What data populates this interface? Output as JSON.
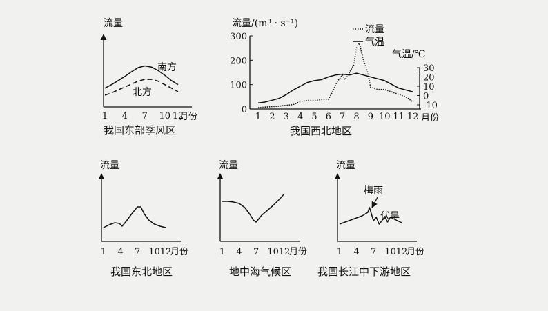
{
  "chart_data": [
    {
      "type": "line",
      "caption": "我国东部季风区",
      "ylabel": "流量",
      "xlabel": "月份",
      "ticks": [
        "1",
        "4",
        "7",
        "10",
        "12"
      ],
      "series": [
        {
          "name": "南方",
          "style": "solid",
          "x": [
            1,
            2,
            3,
            4,
            5,
            6,
            7,
            8,
            9,
            10,
            11,
            12
          ],
          "y": [
            0.32,
            0.38,
            0.45,
            0.52,
            0.6,
            0.67,
            0.7,
            0.68,
            0.62,
            0.54,
            0.45,
            0.38
          ]
        },
        {
          "name": "北方",
          "style": "dashed",
          "x": [
            1,
            2,
            3,
            4,
            5,
            6,
            7,
            8,
            9,
            10,
            11,
            12
          ],
          "y": [
            0.2,
            0.24,
            0.29,
            0.34,
            0.39,
            0.44,
            0.47,
            0.47,
            0.44,
            0.38,
            0.32,
            0.26
          ]
        }
      ]
    },
    {
      "type": "line",
      "caption": "我国西北地区",
      "ylabel": "流量/(m³ · s⁻¹)",
      "ylabel_right": "气温/℃",
      "xlabel": "月份",
      "ylim": [
        0,
        300
      ],
      "yticks": [
        "0",
        "100",
        "200",
        "300"
      ],
      "ylim_right": [
        -10,
        30
      ],
      "yticks_right": [
        "-10",
        "0",
        "10",
        "20",
        "30"
      ],
      "ticks": [
        "1",
        "2",
        "3",
        "4",
        "5",
        "6",
        "7",
        "8",
        "9",
        "10",
        "11",
        "12"
      ],
      "series": [
        {
          "name": "流量",
          "style": "dotted",
          "axis": "left",
          "x": [
            1,
            1.5,
            2,
            2.5,
            3,
            3.5,
            4,
            4.5,
            5,
            5.5,
            6,
            6.3,
            6.6,
            7,
            7.2,
            7.5,
            7.8,
            8,
            8.2,
            8.5,
            8.8,
            9,
            9.5,
            10,
            10.5,
            11,
            11.5,
            12
          ],
          "y": [
            5,
            8,
            10,
            12,
            15,
            18,
            30,
            35,
            35,
            38,
            40,
            70,
            110,
            140,
            120,
            150,
            180,
            250,
            270,
            200,
            150,
            90,
            80,
            80,
            70,
            60,
            50,
            30
          ]
        },
        {
          "name": "气温",
          "style": "solid",
          "axis": "right",
          "x": [
            1,
            1.5,
            2,
            2.5,
            3,
            3.5,
            4,
            4.5,
            5,
            5.5,
            6,
            6.5,
            7,
            7.5,
            8,
            8.5,
            9,
            9.5,
            10,
            10.5,
            11,
            11.5,
            12
          ],
          "y": [
            -8,
            -7,
            -5,
            -3,
            1,
            6,
            10,
            14,
            16,
            17,
            20,
            22,
            23,
            22,
            24,
            22,
            20,
            18,
            16,
            12,
            8,
            6,
            4
          ]
        }
      ]
    },
    {
      "type": "line",
      "caption": "我国东北地区",
      "ylabel": "流量",
      "xlabel": "月份",
      "ticks": [
        "1",
        "4",
        "7",
        "10",
        "12"
      ],
      "series": [
        {
          "style": "solid",
          "x": [
            1,
            2,
            3,
            3.8,
            4.3,
            5,
            6,
            7,
            7.6,
            8.2,
            9,
            10,
            11,
            12
          ],
          "y": [
            0.2,
            0.24,
            0.27,
            0.26,
            0.22,
            0.29,
            0.4,
            0.5,
            0.5,
            0.4,
            0.31,
            0.25,
            0.22,
            0.2
          ]
        }
      ]
    },
    {
      "type": "line",
      "caption": "地中海气候区",
      "ylabel": "流量",
      "xlabel": "月份",
      "ticks": [
        "1",
        "4",
        "7",
        "10",
        "12"
      ],
      "series": [
        {
          "style": "solid",
          "x": [
            1,
            2,
            3,
            4,
            5,
            6,
            6.5,
            7,
            7.5,
            8,
            9,
            10,
            11,
            12
          ],
          "y": [
            0.58,
            0.58,
            0.57,
            0.55,
            0.49,
            0.38,
            0.31,
            0.28,
            0.33,
            0.38,
            0.45,
            0.52,
            0.6,
            0.69
          ]
        }
      ]
    },
    {
      "type": "line",
      "caption": "我国长江中下游地区",
      "ylabel": "流量",
      "xlabel": "月份",
      "ticks": [
        "1",
        "4",
        "7",
        "10",
        "12"
      ],
      "annotations": [
        "梅雨",
        "伏旱"
      ],
      "series": [
        {
          "style": "solid",
          "x": [
            1,
            2,
            3,
            4,
            5,
            6,
            6.3,
            7,
            7.5,
            8,
            8.5,
            9,
            9.5,
            10,
            11,
            12
          ],
          "y": [
            0.25,
            0.28,
            0.31,
            0.34,
            0.37,
            0.42,
            0.49,
            0.3,
            0.35,
            0.25,
            0.3,
            0.36,
            0.28,
            0.35,
            0.31,
            0.27
          ]
        }
      ]
    }
  ]
}
